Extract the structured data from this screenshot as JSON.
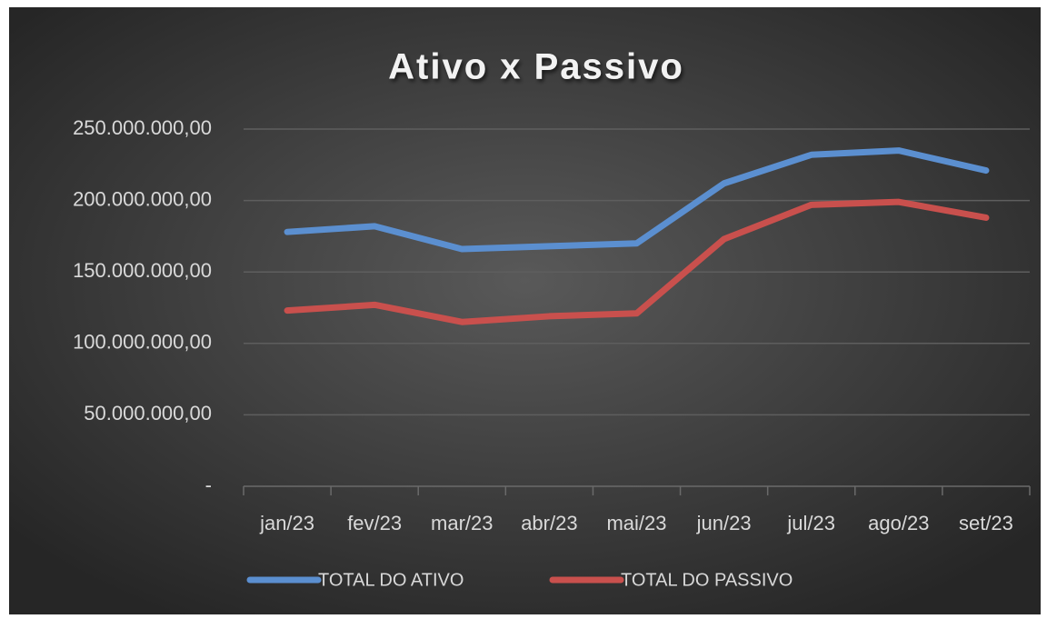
{
  "chart_data": {
    "type": "line",
    "title": "Ativo x Passivo",
    "categories": [
      "jan/23",
      "fev/23",
      "mar/23",
      "abr/23",
      "mai/23",
      "jun/23",
      "jul/23",
      "ago/23",
      "set/23"
    ],
    "series": [
      {
        "name": "TOTAL DO ATIVO",
        "color": "#5b8fd0",
        "values": [
          178000000,
          182000000,
          166000000,
          168000000,
          170000000,
          212000000,
          232000000,
          235000000,
          221000000
        ]
      },
      {
        "name": "TOTAL DO PASSIVO",
        "color": "#c9504d",
        "values": [
          123000000,
          127000000,
          115000000,
          119000000,
          121000000,
          173000000,
          197000000,
          199000000,
          188000000
        ]
      }
    ],
    "ylim": [
      0,
      250000000
    ],
    "yticks": [
      {
        "value": 0,
        "label": "-"
      },
      {
        "value": 50000000,
        "label": "50.000.000,00"
      },
      {
        "value": 100000000,
        "label": "100.000.000,00"
      },
      {
        "value": 150000000,
        "label": "150.000.000,00"
      },
      {
        "value": 200000000,
        "label": "200.000.000,00"
      },
      {
        "value": 250000000,
        "label": "250.000.000,00"
      }
    ],
    "grid": true,
    "legend": "bottom"
  }
}
